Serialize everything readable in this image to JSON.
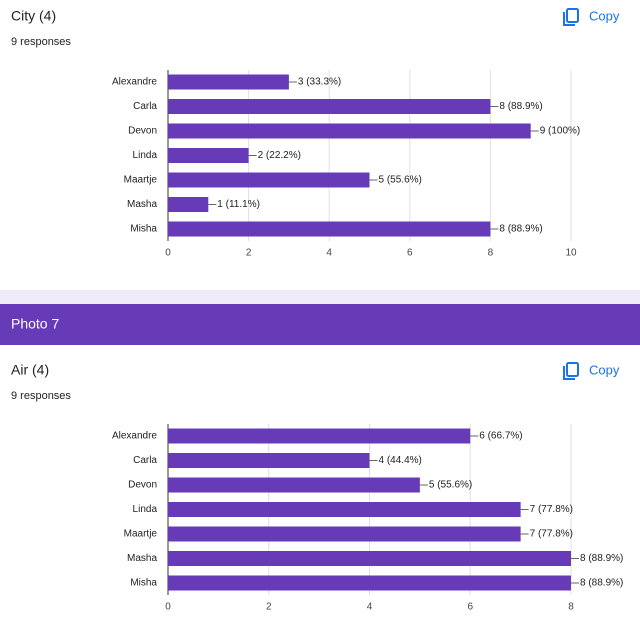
{
  "chart_data": [
    {
      "type": "bar",
      "orientation": "horizontal",
      "title": "City (4)",
      "subtitle": "9 responses",
      "button": "Copy",
      "categories": [
        "Alexandre",
        "Carla",
        "Devon",
        "Linda",
        "Maartje",
        "Masha",
        "Misha"
      ],
      "values": [
        3,
        8,
        9,
        2,
        5,
        1,
        8
      ],
      "value_labels": [
        "3 (33.3%)",
        "8 (88.9%)",
        "9 (100%)",
        "2 (22.2%)",
        "5 (55.6%)",
        "1 (11.1%)",
        "8 (88.9%)"
      ],
      "color": "#673ab7",
      "xlim": [
        0,
        10
      ],
      "xticks": [
        0,
        2,
        4,
        6,
        8,
        10
      ],
      "grid": true
    },
    {
      "type": "bar",
      "orientation": "horizontal",
      "title": "Air (4)",
      "subtitle": "9 responses",
      "button": "Copy",
      "categories": [
        "Alexandre",
        "Carla",
        "Devon",
        "Linda",
        "Maartje",
        "Masha",
        "Misha"
      ],
      "values": [
        6,
        4,
        5,
        7,
        7,
        8,
        8
      ],
      "value_labels": [
        "6 (66.7%)",
        "4 (44.4%)",
        "5 (55.6%)",
        "7 (77.8%)",
        "7 (77.8%)",
        "8 (88.9%)",
        "8 (88.9%)"
      ],
      "color": "#673ab7",
      "xlim": [
        0,
        8
      ],
      "xticks": [
        0,
        2,
        4,
        6,
        8
      ],
      "grid": true
    }
  ],
  "section_title": "Photo 7"
}
